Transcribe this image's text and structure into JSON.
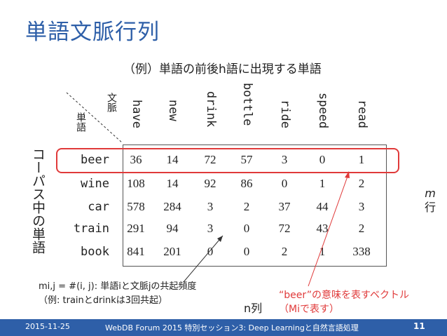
{
  "slide": {
    "title": "単語文脈行列",
    "subtitle": "（例）単語の前後h語に出現する単語",
    "corner_top": "文脈",
    "corner_left": "単語",
    "left_label": "コーパス中の単語",
    "m_label_top": "m",
    "m_label_bottom": "行",
    "n_label": "n列",
    "formula_line1": "mi,j = #(i, j): 単語iと文脈jの共起頻度",
    "formula_line2": "（例: trainとdrinkは3回共起）",
    "beer_note_line1": "“beer”の意味を表すベクトル",
    "beer_note_line2": "（Miで表す）"
  },
  "matrix": {
    "columns": [
      "have",
      "new",
      "drink",
      "bottle",
      "ride",
      "speed",
      "read"
    ],
    "rows": [
      {
        "word": "beer",
        "values": [
          "36",
          "14",
          "72",
          "57",
          "3",
          "0",
          "1"
        ]
      },
      {
        "word": "wine",
        "values": [
          "108",
          "14",
          "92",
          "86",
          "0",
          "1",
          "2"
        ]
      },
      {
        "word": "car",
        "values": [
          "578",
          "284",
          "3",
          "2",
          "37",
          "44",
          "3"
        ]
      },
      {
        "word": "train",
        "values": [
          "291",
          "94",
          "3",
          "0",
          "72",
          "43",
          "2"
        ]
      },
      {
        "word": "book",
        "values": [
          "841",
          "201",
          "0",
          "0",
          "2",
          "1",
          "338"
        ]
      }
    ]
  },
  "footer": {
    "date": "2015-11-25",
    "event": "WebDB Forum 2015 特別セッション3: Deep Learningと自然言語処理",
    "page": "11"
  },
  "colors": {
    "accent": "#2e5fa8",
    "highlight": "#e03a3a"
  }
}
